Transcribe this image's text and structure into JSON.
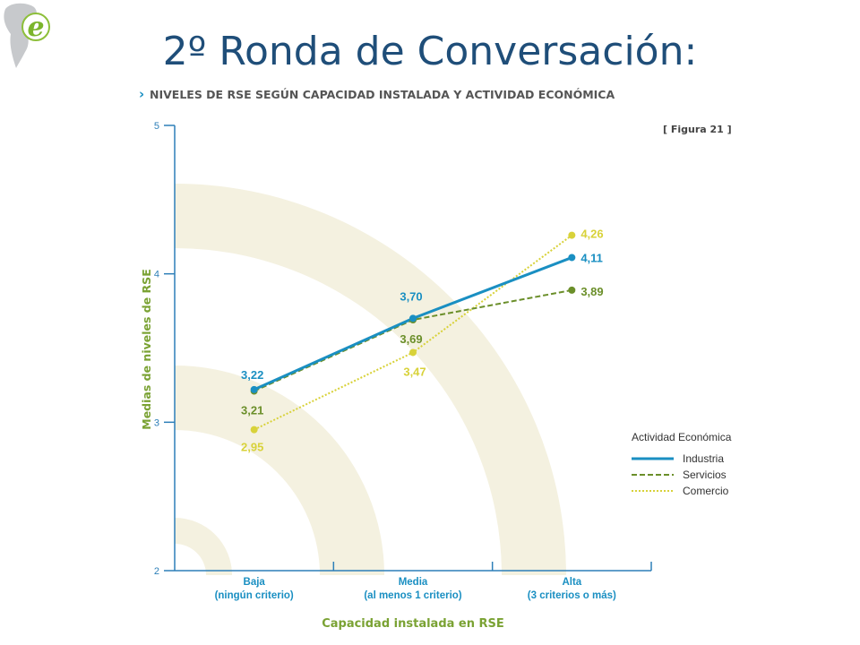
{
  "slide": {
    "title": "2º Ronda de Conversación:",
    "logo_letter": "e"
  },
  "chart_data": {
    "type": "line",
    "title": "NIVELES DE RSE SEGÚN CAPACIDAD INSTALADA  Y ACTIVIDAD ECONÓMICA",
    "title_marker": "›",
    "figure_label": "[ Figura 21 ]",
    "xlabel": "Capacidad instalada en RSE",
    "ylabel": "Medias de niveles de RSE",
    "ylim": [
      2,
      5
    ],
    "yticks": [
      "2",
      "3",
      "4",
      "5"
    ],
    "categories": [
      {
        "line1": "Baja",
        "line2": "(ningún criterio)"
      },
      {
        "line1": "Media",
        "line2": "(al menos 1 criterio)"
      },
      {
        "line1": "Alta",
        "line2": "(3 criterios o más)"
      }
    ],
    "legend_title": "Actividad Económica",
    "legend_position": "right",
    "series": [
      {
        "name": "Industria",
        "values": [
          3.22,
          3.7,
          4.11
        ],
        "labels": [
          "3,22",
          "3,70",
          "4,11"
        ],
        "color": "#1a8fc2",
        "style": "solid"
      },
      {
        "name": "Servicios",
        "values": [
          3.21,
          3.69,
          3.89
        ],
        "labels": [
          "3,21",
          "3,69",
          "3,89"
        ],
        "color": "#6b8f2a",
        "style": "dashed"
      },
      {
        "name": "Comercio",
        "values": [
          2.95,
          3.47,
          4.26
        ],
        "labels": [
          "2,95",
          "3,47",
          "4,26"
        ],
        "color": "#d8d23a",
        "style": "dotted"
      }
    ]
  }
}
